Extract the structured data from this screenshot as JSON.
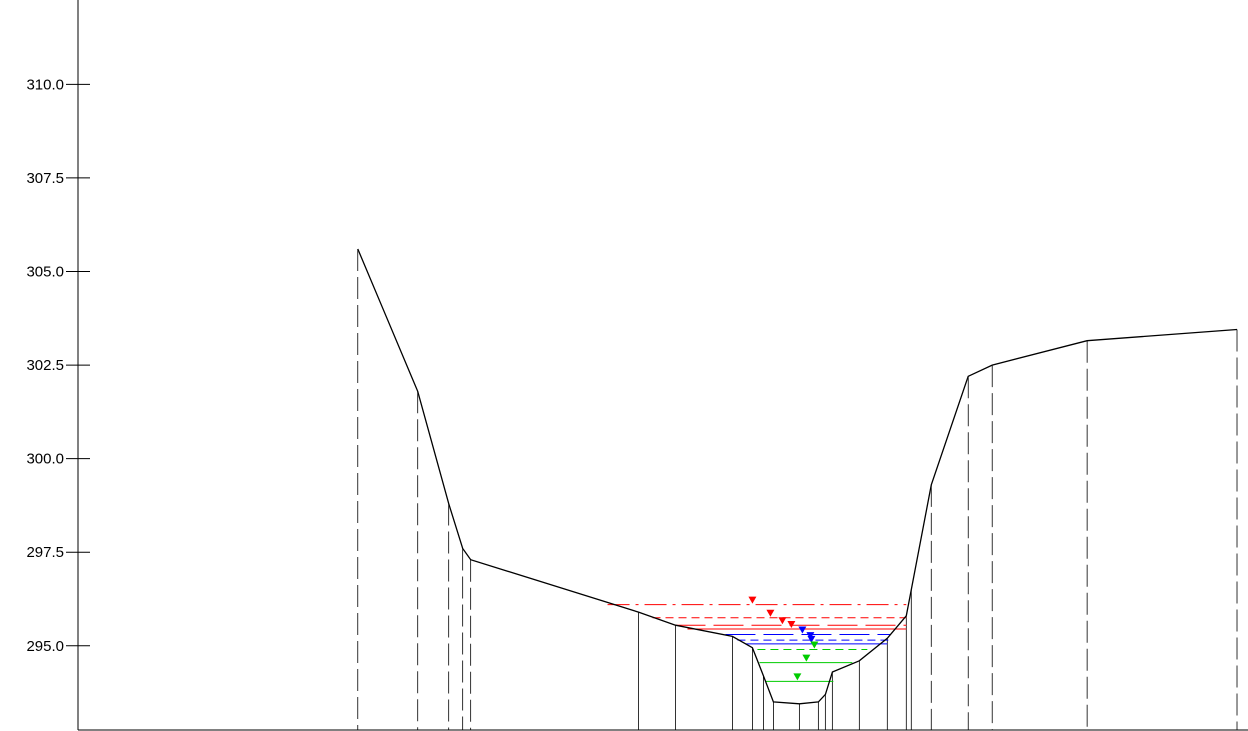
{
  "chart_data": {
    "type": "line",
    "title": "",
    "xlabel": "",
    "ylabel": "",
    "ylim": [
      292.75,
      312.2
    ],
    "xlim": [
      0,
      1170
    ],
    "y_ticks": [
      {
        "value": 295.0,
        "label": "295.0"
      },
      {
        "value": 297.5,
        "label": "297.5"
      },
      {
        "value": 300.0,
        "label": "300.0"
      },
      {
        "value": 302.5,
        "label": "302.5"
      },
      {
        "value": 305.0,
        "label": "305.0"
      },
      {
        "value": 307.5,
        "label": "307.5"
      },
      {
        "value": 310.0,
        "label": "310.0"
      }
    ],
    "grid": false,
    "legend": "none",
    "series": [
      {
        "kind": "ground-profile",
        "color": "#000000",
        "points": [
          [
            280,
            305.6
          ],
          [
            340,
            301.8
          ],
          [
            371,
            298.8
          ],
          [
            385,
            297.6
          ],
          [
            393,
            297.3
          ],
          [
            561,
            295.9
          ],
          [
            598,
            295.55
          ],
          [
            655,
            295.25
          ],
          [
            675,
            294.95
          ],
          [
            686,
            294.2
          ],
          [
            696,
            293.5
          ],
          [
            722,
            293.45
          ],
          [
            741,
            293.5
          ],
          [
            748,
            293.7
          ],
          [
            755,
            294.3
          ],
          [
            782,
            294.6
          ],
          [
            810,
            295.2
          ],
          [
            829,
            295.8
          ],
          [
            834,
            296.5
          ],
          [
            854,
            299.3
          ],
          [
            891,
            302.2
          ],
          [
            915,
            302.5
          ],
          [
            1010,
            303.15
          ],
          [
            1160,
            303.45
          ]
        ]
      }
    ],
    "vertical_lines": [
      {
        "x": 280,
        "style": "dashed",
        "y_top": 305.6
      },
      {
        "x": 340,
        "style": "dashed",
        "y_top": 301.8
      },
      {
        "x": 371,
        "style": "dashed",
        "y_top": 298.8
      },
      {
        "x": 385,
        "style": "dashed",
        "y_top": 297.6
      },
      {
        "x": 393,
        "style": "dashed",
        "y_top": 297.3
      },
      {
        "x": 561,
        "style": "solid",
        "y_top": 295.9
      },
      {
        "x": 598,
        "style": "solid",
        "y_top": 295.55
      },
      {
        "x": 655,
        "style": "solid",
        "y_top": 295.25
      },
      {
        "x": 675,
        "style": "solid",
        "y_top": 294.95
      },
      {
        "x": 686,
        "style": "solid",
        "y_top": 294.2
      },
      {
        "x": 696,
        "style": "solid",
        "y_top": 293.5
      },
      {
        "x": 722,
        "style": "solid",
        "y_top": 293.45
      },
      {
        "x": 741,
        "style": "solid",
        "y_top": 293.5
      },
      {
        "x": 748,
        "style": "solid",
        "y_top": 293.7
      },
      {
        "x": 755,
        "style": "solid",
        "y_top": 294.3
      },
      {
        "x": 782,
        "style": "solid",
        "y_top": 294.6
      },
      {
        "x": 810,
        "style": "solid",
        "y_top": 295.2
      },
      {
        "x": 829,
        "style": "solid",
        "y_top": 295.8
      },
      {
        "x": 834,
        "style": "solid",
        "y_top": 296.5
      },
      {
        "x": 854,
        "style": "dashed",
        "y_top": 299.3
      },
      {
        "x": 891,
        "style": "dashed",
        "y_top": 302.2
      },
      {
        "x": 915,
        "style": "dashed",
        "y_top": 302.5
      },
      {
        "x": 1010,
        "style": "dashed",
        "y_top": 303.15
      },
      {
        "x": 1160,
        "style": "dashed",
        "y_top": 303.45
      }
    ],
    "water_levels": [
      {
        "color": "#ff0000",
        "style": "dashdot",
        "y": 296.1,
        "x_start": 530,
        "x_end": 829,
        "marker_x": 675
      },
      {
        "color": "#ff0000",
        "style": "dashed",
        "y": 295.75,
        "x_start": 575,
        "x_end": 829,
        "marker_x": 693
      },
      {
        "color": "#ff0000",
        "style": "longdash",
        "y": 295.55,
        "x_start": 598,
        "x_end": 829,
        "marker_x": 705
      },
      {
        "color": "#ff0000",
        "style": "solid",
        "y": 295.45,
        "x_start": 610,
        "x_end": 829,
        "marker_x": 714
      },
      {
        "color": "#0000ff",
        "style": "longdash",
        "y": 295.3,
        "x_start": 648,
        "x_end": 813,
        "marker_x": 725
      },
      {
        "color": "#0000ff",
        "style": "dashed",
        "y": 295.15,
        "x_start": 660,
        "x_end": 811,
        "marker_x": 733
      },
      {
        "color": "#0000ff",
        "style": "solid",
        "y": 295.05,
        "x_start": 668,
        "x_end": 810,
        "marker_x": 734
      },
      {
        "color": "#00cc00",
        "style": "dashed",
        "y": 294.9,
        "x_start": 680,
        "x_end": 790,
        "marker_x": 737
      },
      {
        "color": "#00cc00",
        "style": "solid",
        "y": 294.55,
        "x_start": 682,
        "x_end": 775,
        "marker_x": 729
      },
      {
        "color": "#00cc00",
        "style": "solid",
        "y": 294.05,
        "x_start": 688,
        "x_end": 756,
        "marker_x": 720
      }
    ]
  }
}
